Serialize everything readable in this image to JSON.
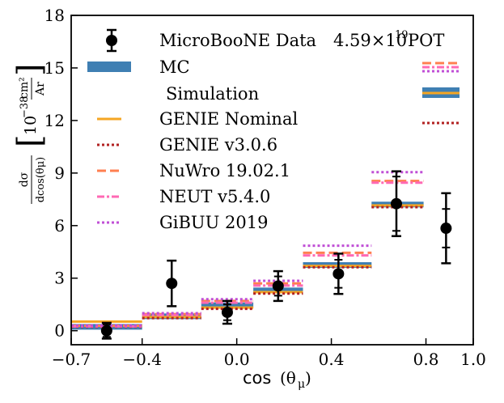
{
  "chart_data": {
    "type": "errorbar-step",
    "xlabel_main": "cos",
    "xlabel_arg": "(θ",
    "xlabel_sub": "μ",
    "xlabel_close": ")",
    "ylabel_fraction_num": "dσ",
    "ylabel_fraction_den": "dcos(θμ)",
    "ylabel_units_base": "10",
    "ylabel_units_exp": "−38",
    "ylabel_units_unit": "cm²",
    "ylabel_units_per": "Ar",
    "xlim": [
      -0.7,
      1.0
    ],
    "ylim": [
      -0.8,
      18
    ],
    "xticks": [
      -0.7,
      -0.4,
      0.0,
      0.4,
      0.8,
      1.0
    ],
    "xtick_labels": [
      "−0.7",
      "−0.4",
      "0.0",
      "0.4",
      "0.8",
      "1.0"
    ],
    "yticks": [
      0,
      3,
      6,
      9,
      12,
      15,
      18
    ],
    "ytick_labels": [
      "0",
      "3",
      "6",
      "9",
      "12",
      "15",
      "18"
    ],
    "bin_edges": [
      [
        -0.7,
        -0.4
      ],
      [
        -0.4,
        -0.15
      ],
      [
        -0.15,
        0.07
      ],
      [
        0.07,
        0.28
      ],
      [
        0.28,
        0.57
      ],
      [
        0.57,
        0.79
      ]
    ],
    "data": {
      "name": "MicroBooNE Data",
      "x": [
        -0.55,
        -0.275,
        -0.04,
        0.175,
        0.43,
        0.675,
        0.885
      ],
      "y": [
        0.0,
        2.7,
        1.05,
        2.55,
        3.25,
        7.25,
        5.85
      ],
      "err_stat": [
        0.35,
        1.3,
        0.45,
        0.55,
        0.8,
        1.55,
        1.1
      ],
      "err_total": [
        0.45,
        1.3,
        0.65,
        0.85,
        1.15,
        1.85,
        2.0
      ]
    },
    "series": [
      {
        "name": "MC",
        "color": "#3f7fb3",
        "values": [
          0.22,
          0.82,
          1.45,
          2.3,
          3.75,
          7.2
        ]
      },
      {
        "name": "GENIE Nominal",
        "color": "#f5a623",
        "values": [
          0.52,
          0.78,
          1.32,
          2.2,
          3.7,
          7.15
        ]
      },
      {
        "name": "GENIE v3.0.6",
        "color": "#b22222",
        "values": [
          0.22,
          0.72,
          1.25,
          2.12,
          3.62,
          7.05
        ]
      },
      {
        "name": "NuWro 19.02.1",
        "color": "#ff7f50",
        "values": [
          0.28,
          0.95,
          1.7,
          2.7,
          4.45,
          8.55
        ]
      },
      {
        "name": "NEUT  v5.4.0",
        "color": "#ff69b4",
        "values": [
          0.25,
          0.9,
          1.6,
          2.58,
          4.3,
          8.45
        ]
      },
      {
        "name": "GiBUU 2019",
        "color": "#c04fd6",
        "values": [
          0.3,
          1.0,
          1.8,
          2.85,
          4.85,
          9.05
        ]
      }
    ],
    "legend": {
      "data_label": "MicroBooNE Data",
      "pot_label": "4.59×10",
      "pot_exp": "19",
      "pot_unit": " POT",
      "mc_label": "MC",
      "simulation_label": "Simulation"
    }
  }
}
